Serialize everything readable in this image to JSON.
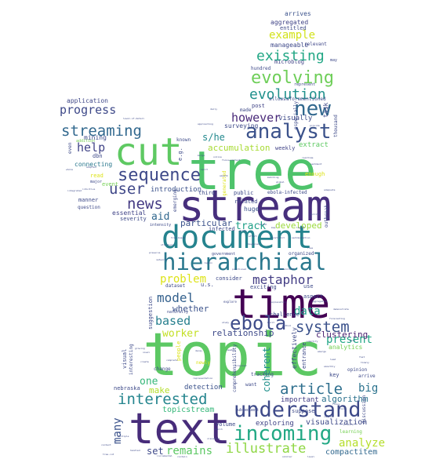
{
  "words": [
    {
      "text": "topic",
      "color": "#5cc863"
    },
    {
      "text": "tree",
      "color": "#4ec36b"
    },
    {
      "text": "text",
      "color": "#472c7a"
    },
    {
      "text": "stream",
      "color": "#472f7d"
    },
    {
      "text": "time",
      "color": "#440154"
    },
    {
      "text": "cut",
      "color": "#5ec962"
    },
    {
      "text": "document",
      "color": "#25838e"
    },
    {
      "text": "hierarchical",
      "color": "#2a788e"
    },
    {
      "text": "understand",
      "color": "#3e4a89"
    },
    {
      "text": "incoming",
      "color": "#22a884"
    },
    {
      "text": "analyst",
      "color": "#3b528b"
    },
    {
      "text": "new",
      "color": "#31688e"
    },
    {
      "text": "ebola",
      "color": "#3e4c8a"
    },
    {
      "text": "sequence",
      "color": "#3e4989"
    },
    {
      "text": "evolving",
      "color": "#6ece58"
    },
    {
      "text": "evolution",
      "color": "#21918c"
    },
    {
      "text": "existing",
      "color": "#22a785"
    },
    {
      "text": "streaming",
      "color": "#31688e"
    },
    {
      "text": "user",
      "color": "#3f4788"
    },
    {
      "text": "news",
      "color": "#443a83"
    },
    {
      "text": "metaphor",
      "color": "#433d84"
    },
    {
      "text": "article",
      "color": "#2e6f8e"
    },
    {
      "text": "system",
      "color": "#3b528b"
    },
    {
      "text": "interested",
      "color": "#25858e"
    },
    {
      "text": "illustrate",
      "color": "#8fd744"
    },
    {
      "text": "model",
      "color": "#34618d"
    },
    {
      "text": "progress",
      "color": "#3e4989"
    },
    {
      "text": "however",
      "color": "#482878"
    },
    {
      "text": "help",
      "color": "#414487"
    },
    {
      "text": "based",
      "color": "#277f8e"
    },
    {
      "text": "example",
      "color": "#d2e21b"
    },
    {
      "text": "problem",
      "color": "#dde318"
    },
    {
      "text": "present",
      "color": "#21a685"
    },
    {
      "text": "analyze",
      "color": "#b5de2b"
    },
    {
      "text": "remains",
      "color": "#5cc863"
    },
    {
      "text": "worker",
      "color": "#c2df23"
    },
    {
      "text": "data",
      "color": "#1f9e89"
    },
    {
      "text": "big",
      "color": "#2c738e"
    },
    {
      "text": "many",
      "color": "#3b528b"
    },
    {
      "text": "one",
      "color": "#35b779"
    },
    {
      "text": "aid",
      "color": "#31688e"
    },
    {
      "text": "track",
      "color": "#1fa088"
    },
    {
      "text": "s/he",
      "color": "#23898e"
    },
    {
      "text": "accumulation",
      "color": "#a8db34"
    },
    {
      "text": "particular",
      "color": "#3b528b"
    },
    {
      "text": "developed",
      "color": "#9bd93c"
    },
    {
      "text": "relationship",
      "color": "#3e4a89"
    },
    {
      "text": "clustering",
      "color": "#481f70"
    },
    {
      "text": "algorithm",
      "color": "#2c728e"
    },
    {
      "text": "topicstream",
      "color": "#35b779"
    },
    {
      "text": "whether",
      "color": "#3b528b"
    },
    {
      "text": "coherent",
      "color": "#21918c"
    },
    {
      "text": "visualization",
      "color": "#3e4a89"
    },
    {
      "text": "compactitem",
      "color": "#31688e"
    },
    {
      "text": "set",
      "color": "#3e4989"
    },
    {
      "text": "make",
      "color": "#b5de2b"
    },
    {
      "text": "detection",
      "color": "#3b528b"
    },
    {
      "text": "exploring",
      "color": "#414487"
    },
    {
      "text": "important",
      "color": "#433e85"
    },
    {
      "text": "introduction",
      "color": "#3b528b"
    },
    {
      "text": "essential",
      "color": "#414487"
    },
    {
      "text": "connecting",
      "color": "#2a788e"
    },
    {
      "text": "mining",
      "color": "#3e4a89"
    },
    {
      "text": "application",
      "color": "#3f4788"
    },
    {
      "text": "surveying",
      "color": "#3e4a89"
    },
    {
      "text": "visually",
      "color": "#3e4a89"
    },
    {
      "text": "aggregated",
      "color": "#414487"
    },
    {
      "text": "arrives",
      "color": "#3b528b"
    },
    {
      "text": "entitled",
      "color": "#3e4a89"
    },
    {
      "text": "manageable",
      "color": "#3e4989"
    },
    {
      "text": "relevant",
      "color": "#3f4788"
    },
    {
      "text": "microblog",
      "color": "#414487"
    },
    {
      "text": "hundred",
      "color": "#3e4a89"
    },
    {
      "text": "allows",
      "color": "#3e4a89"
    },
    {
      "text": "aforementioned",
      "color": "#3e4989"
    },
    {
      "text": "post",
      "color": "#414487"
    },
    {
      "text": "task",
      "color": "#3e4a89"
    },
    {
      "text": "weekly",
      "color": "#414487"
    },
    {
      "text": "extract",
      "color": "#5ec962"
    },
    {
      "text": "enough",
      "color": "#dde318"
    },
    {
      "text": "public",
      "color": "#3e4a89"
    },
    {
      "text": "related",
      "color": "#3e4a89"
    },
    {
      "text": "huge",
      "color": "#3b528b"
    },
    {
      "text": "ebola-infected",
      "color": "#3e4a89"
    },
    {
      "text": "infected",
      "color": "#3e4a89"
    },
    {
      "text": "consider",
      "color": "#3e4a89"
    },
    {
      "text": "organized",
      "color": "#3e4a89"
    },
    {
      "text": "exciting",
      "color": "#3e4a89"
    },
    {
      "text": "use",
      "color": "#3e4a89"
    },
    {
      "text": "u.s.",
      "color": "#3e4a89"
    },
    {
      "text": "dataset",
      "color": "#3e4a89"
    },
    {
      "text": "aspect",
      "color": "#3e4a89"
    },
    {
      "text": "challenge",
      "color": "#3e4a89"
    },
    {
      "text": "effectively",
      "color": "#3e4a89"
    },
    {
      "text": "entrance",
      "color": "#3e4a89"
    },
    {
      "text": "analytics",
      "color": "#75d054"
    },
    {
      "text": "key",
      "color": "#3e4a89"
    },
    {
      "text": "nebraska",
      "color": "#3e4a89"
    },
    {
      "text": "suggestion",
      "color": "#3e4a89"
    },
    {
      "text": "visual",
      "color": "#3e4a89"
    },
    {
      "text": "interesting",
      "color": "#3e4a89"
    },
    {
      "text": "people",
      "color": "#dde318"
    },
    {
      "text": "newly",
      "color": "#dde318"
    },
    {
      "text": "dbn",
      "color": "#3e4a89"
    },
    {
      "text": "event",
      "color": "#75d054"
    },
    {
      "text": "manner",
      "color": "#3e4a89"
    },
    {
      "text": "question",
      "color": "#3e4a89"
    },
    {
      "text": "severity",
      "color": "#3e4a89"
    },
    {
      "text": "read",
      "color": "#dde318"
    },
    {
      "text": "e.g.",
      "color": "#3e4a89"
    },
    {
      "text": "known",
      "color": "#3e4a89"
    },
    {
      "text": "third",
      "color": "#3e4a89"
    },
    {
      "text": "emerging",
      "color": "#3e4a89"
    },
    {
      "text": "volume",
      "color": "#3e4a89"
    },
    {
      "text": "tracking",
      "color": "#3e4a89"
    },
    {
      "text": "subsequent",
      "color": "#3e4a89"
    },
    {
      "text": "suppose",
      "color": "#3e4a89"
    },
    {
      "text": "learning",
      "color": "#75d054"
    },
    {
      "text": "opinion",
      "color": "#3e4a89"
    },
    {
      "text": "thousand",
      "color": "#3e4a89"
    },
    {
      "text": "represent",
      "color": "#3e4a89"
    },
    {
      "text": "may",
      "color": "#3e4a89"
    },
    {
      "text": "arrive",
      "color": "#3e4a89"
    },
    {
      "text": "want",
      "color": "#3e4a89"
    },
    {
      "text": "government",
      "color": "#3e4a89"
    },
    {
      "text": "outbreak",
      "color": "#3e4a89"
    },
    {
      "text": "comprehensibility",
      "color": "#3e4a89"
    },
    {
      "text": "change",
      "color": "#3e4a89"
    },
    {
      "text": "discussion",
      "color": "#3e4a89"
    },
    {
      "text": "addition",
      "color": "#75d054"
    },
    {
      "text": "even",
      "color": "#3e4a89"
    },
    {
      "text": "major",
      "color": "#3e4a89"
    },
    {
      "text": "generated",
      "color": "#dde318"
    },
    {
      "text": "especially",
      "color": "#3e4a89"
    },
    {
      "text": "made",
      "color": "#3e4a89"
    },
    {
      "text": "approaching",
      "color": "#3e4a89"
    },
    {
      "text": "adopted",
      "color": "#3e4a89"
    },
    {
      "text": "whole",
      "color": "#3e4a89"
    },
    {
      "text": "intuitive",
      "color": "#3e4a89"
    },
    {
      "text": "often",
      "color": "#3e4a89"
    },
    {
      "text": "provide",
      "color": "#3e4a89"
    },
    {
      "text": "intensity",
      "color": "#3e4a89"
    },
    {
      "text": "naturally",
      "color": "#3e4a89"
    },
    {
      "text": "explore",
      "color": "#3e4a89"
    },
    {
      "text": "realtime",
      "color": "#3e4a89"
    },
    {
      "text": "adequate",
      "color": "#3e4a89"
    },
    {
      "text": "integrated",
      "color": "#3e4a89"
    },
    {
      "text": "ability",
      "color": "#3e4a89"
    },
    {
      "text": "effort",
      "color": "#3e4a89"
    },
    {
      "text": "explanation",
      "color": "#3e4a89"
    },
    {
      "text": "aggregation",
      "color": "#3e4a89"
    },
    {
      "text": "forecasting",
      "color": "#3e4a89"
    },
    {
      "text": "demonstrate",
      "color": "#3e4a89"
    },
    {
      "text": "decay",
      "color": "#3e4a89"
    },
    {
      "text": "representation",
      "color": "#3e4a89"
    },
    {
      "text": "complete",
      "color": "#3e4a89"
    },
    {
      "text": "focus",
      "color": "#3e4a89"
    },
    {
      "text": "tool",
      "color": "#3e4a89"
    },
    {
      "text": "combine",
      "color": "#3e4a89"
    },
    {
      "text": "produce",
      "color": "#3e4a89"
    },
    {
      "text": "proposed",
      "color": "#3e4a89"
    },
    {
      "text": "needed",
      "color": "#3e4a89"
    },
    {
      "text": "search",
      "color": "#3e4a89"
    },
    {
      "text": "visualize",
      "color": "#3e4a89"
    },
    {
      "text": "handled",
      "color": "#3e4a89"
    },
    {
      "text": "multiple",
      "color": "#3e4a89"
    },
    {
      "text": "incremental",
      "color": "#3e4a89"
    },
    {
      "text": "contain",
      "color": "#3e4a89"
    },
    {
      "text": "similar",
      "color": "#3e4a89"
    },
    {
      "text": "level",
      "color": "#3e4a89"
    },
    {
      "text": "context",
      "color": "#3e4a89"
    },
    {
      "text": "tree-cut",
      "color": "#3e4a89"
    },
    {
      "text": "well",
      "color": "#3e4a89"
    },
    {
      "text": "fast",
      "color": "#3e4a89"
    },
    {
      "text": "timely",
      "color": "#3e4a89"
    },
    {
      "text": "emerge",
      "color": "#3e4a89"
    },
    {
      "text": "smoothly",
      "color": "#3e4a89"
    },
    {
      "text": "growing",
      "color": "#3e4a89"
    },
    {
      "text": "novel",
      "color": "#3e4a89"
    },
    {
      "text": "create",
      "color": "#3e4a89"
    },
    {
      "text": "study",
      "color": "#3e4a89"
    },
    {
      "text": "built",
      "color": "#3e4a89"
    },
    {
      "text": "method",
      "color": "#3e4a89"
    },
    {
      "text": "identify",
      "color": "#3e4a89"
    },
    {
      "text": "lead",
      "color": "#3e4a89"
    },
    {
      "text": "daily",
      "color": "#3e4a89"
    },
    {
      "text": "level-of-detail",
      "color": "#3e4a89"
    },
    {
      "text": "online",
      "color": "#3e4a89"
    },
    {
      "text": "focus+context",
      "color": "#3e4a89"
    },
    {
      "text": "smooth",
      "color": "#3e4a89"
    },
    {
      "text": "matching",
      "color": "#3e4a89"
    },
    {
      "text": "global",
      "color": "#3e4a89"
    },
    {
      "text": "merge",
      "color": "#3e4a89"
    },
    {
      "text": "split",
      "color": "#3e4a89"
    },
    {
      "text": "sediment",
      "color": "#3e4a89"
    },
    {
      "text": "mental",
      "color": "#3e4a89"
    },
    {
      "text": "map",
      "color": "#3e4a89"
    },
    {
      "text": "layout",
      "color": "#3e4a89"
    },
    {
      "text": "drift",
      "color": "#3e4a89"
    },
    {
      "text": "sedimentation",
      "color": "#3e4a89"
    },
    {
      "text": "constraint",
      "color": "#3e4a89"
    },
    {
      "text": "bayesian",
      "color": "#3e4a89"
    },
    {
      "text": "rose",
      "color": "#3e4a89"
    },
    {
      "text": "tree-based",
      "color": "#3e4a89"
    },
    {
      "text": "structure",
      "color": "#3e4a89"
    },
    {
      "text": "preserve",
      "color": "#3e4a89"
    },
    {
      "text": "network",
      "color": "#3e4a89"
    },
    {
      "text": "region",
      "color": "#3e4a89"
    },
    {
      "text": "stable",
      "color": "#3e4a89"
    },
    {
      "text": "positioned",
      "color": "#3e4a89"
    },
    {
      "text": "likelihood",
      "color": "#3e4a89"
    }
  ]
}
